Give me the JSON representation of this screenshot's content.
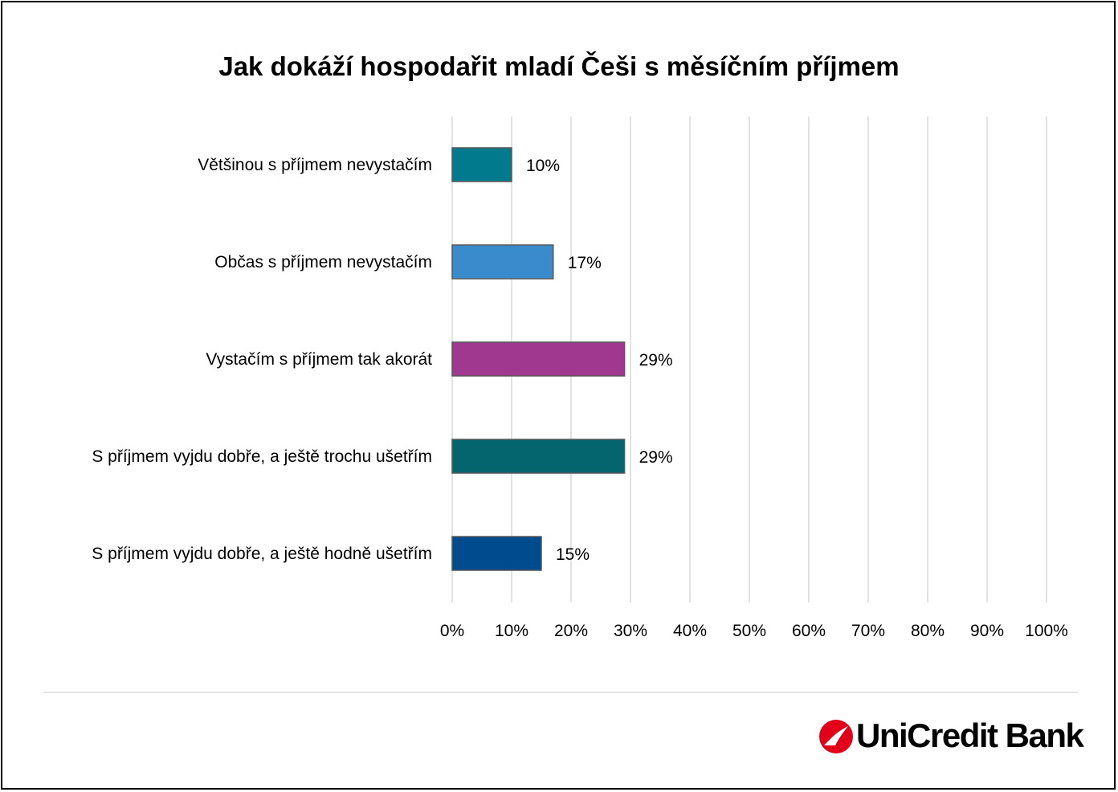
{
  "chart_data": {
    "type": "bar",
    "orientation": "horizontal",
    "title": "Jak dokáží hospodařit mladí Češi s měsíčním příjmem",
    "categories": [
      "Většinou s příjmem nevystačím",
      "Občas s příjmem nevystačím",
      "Vystačím s příjmem tak akorát",
      "S příjmem vyjdu dobře, a ještě trochu ušetřím",
      "S příjmem vyjdu dobře, a ještě hodně ušetřím"
    ],
    "values": [
      10,
      17,
      29,
      29,
      15
    ],
    "data_labels": [
      "10%",
      "17%",
      "29%",
      "29%",
      "15%"
    ],
    "bar_colors": [
      "#027a8e",
      "#3a8bcc",
      "#a0388f",
      "#04656f",
      "#004b8d"
    ],
    "xlim": [
      0,
      100
    ],
    "x_ticks": [
      "0%",
      "10%",
      "20%",
      "30%",
      "40%",
      "50%",
      "60%",
      "70%",
      "80%",
      "90%",
      "100%"
    ],
    "grid": true,
    "legend": "none"
  },
  "brand": {
    "name": "UniCredit Bank",
    "color": "#e2001a"
  }
}
